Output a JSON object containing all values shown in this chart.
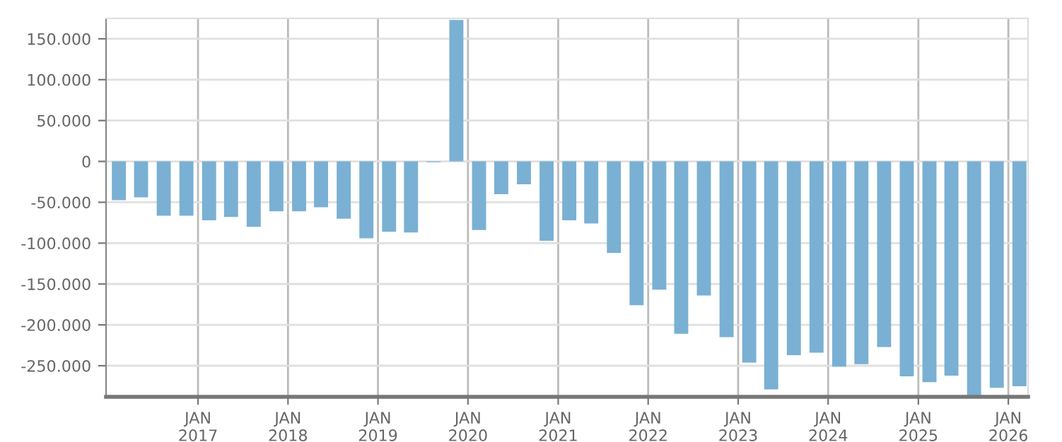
{
  "chart_data": {
    "type": "bar",
    "color": "#7ab0d3",
    "grid": true,
    "x": [
      "2016-02-15",
      "2016-05-15",
      "2016-08-15",
      "2016-11-15",
      "2017-02-15",
      "2017-05-15",
      "2017-08-15",
      "2017-11-15",
      "2018-02-15",
      "2018-05-15",
      "2018-08-15",
      "2018-11-15",
      "2019-02-15",
      "2019-05-15",
      "2019-08-15",
      "2019-11-15",
      "2020-02-15",
      "2020-05-15",
      "2020-08-15",
      "2020-11-15",
      "2021-02-15",
      "2021-05-15",
      "2021-08-15",
      "2021-11-15",
      "2022-02-15",
      "2022-05-15",
      "2022-08-15",
      "2022-11-15",
      "2023-02-15",
      "2023-05-15",
      "2023-08-15",
      "2023-11-15",
      "2024-02-15",
      "2024-05-15",
      "2024-08-15",
      "2024-11-15",
      "2025-02-15",
      "2025-05-15",
      "2025-08-15",
      "2025-11-15",
      "2026-02-15"
    ],
    "values": [
      -47500,
      -44000,
      -66500,
      -66500,
      -72000,
      -68000,
      -80000,
      -61000,
      -61000,
      -56000,
      -70000,
      -94000,
      -86000,
      -87000,
      -1000,
      173000,
      -84000,
      -40000,
      -28000,
      -97000,
      -72000,
      -76000,
      -112000,
      -176000,
      -157000,
      -211000,
      -164000,
      -215000,
      -246000,
      -279000,
      -237000,
      -234000,
      -251000,
      -248000,
      -227000,
      -263000,
      -270000,
      -262000,
      -288000,
      -277000,
      -275000
    ],
    "ylim": [
      -288000,
      175000
    ],
    "yticks": [
      {
        "value": -250000,
        "label": "-250.000"
      },
      {
        "value": -200000,
        "label": "-200.000"
      },
      {
        "value": -150000,
        "label": "-150.000"
      },
      {
        "value": -100000,
        "label": "-100.000"
      },
      {
        "value": -50000,
        "label": "-50.000"
      },
      0,
      {
        "value": 50000,
        "label": "50.000"
      },
      {
        "value": 100000,
        "label": "100.000"
      },
      {
        "value": 150000,
        "label": "150.000"
      }
    ],
    "xlim": [
      "2015-12-25",
      "2026-03-22"
    ],
    "xticks": [
      {
        "value": "2017-01-01",
        "label": "JAN\n2017"
      },
      {
        "value": "2018-01-01",
        "label": "JAN\n2018"
      },
      {
        "value": "2019-01-01",
        "label": "JAN\n2019"
      },
      {
        "value": "2020-01-01",
        "label": "JAN\n2020"
      },
      {
        "value": "2021-01-01",
        "label": "JAN\n2021"
      },
      {
        "value": "2022-01-01",
        "label": "JAN\n2022"
      },
      {
        "value": "2023-01-01",
        "label": "JAN\n2023"
      },
      {
        "value": "2024-01-01",
        "label": "JAN\n2024"
      },
      {
        "value": "2025-01-01",
        "label": "JAN\n2025"
      },
      {
        "value": "2026-01-01",
        "label": "JAN\n2026"
      }
    ]
  }
}
